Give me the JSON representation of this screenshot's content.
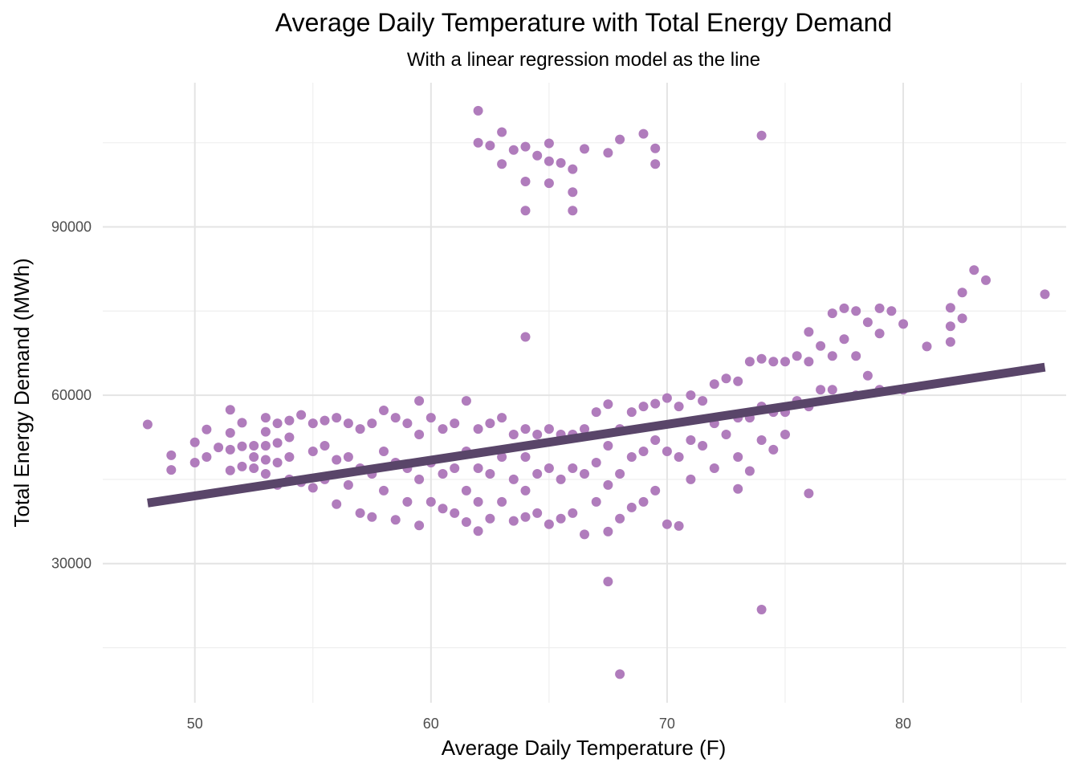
{
  "chart_data": {
    "type": "scatter",
    "title": "Average Daily Temperature with Total Energy Demand",
    "subtitle": "With a linear regression model as the line",
    "xlabel": "Average Daily Temperature (F)",
    "ylabel": "Total Energy Demand (MWh)",
    "xlim": [
      46.1,
      86.9
    ],
    "ylim": [
      5200,
      115700
    ],
    "x_ticks": [
      50,
      60,
      70,
      80
    ],
    "x_tick_labels": [
      "50",
      "60",
      "70",
      "80"
    ],
    "x_minor_ticks": [
      55,
      65,
      75,
      85
    ],
    "y_ticks": [
      30000,
      60000,
      90000
    ],
    "y_tick_labels": [
      "30000",
      "60000",
      "90000"
    ],
    "y_minor_ticks": [
      15000,
      45000,
      75000,
      105000
    ],
    "grid": true,
    "legend": "none",
    "colors": {
      "points": "#b07cbc",
      "line": "#594569",
      "grid_major": "#e4e4e4",
      "grid_minor": "#ededed"
    },
    "regression_line": {
      "x": [
        48,
        86
      ],
      "y": [
        40800,
        65000
      ]
    },
    "series": [
      {
        "x": [
          48,
          49,
          49,
          50,
          50,
          50.5,
          50.5,
          51,
          51.5,
          51.5,
          51.5,
          51.5,
          52,
          52,
          52,
          52.5,
          52.5,
          52.5,
          53,
          53,
          53,
          53,
          53,
          53.5,
          53.5,
          53.5,
          53.5,
          54,
          54,
          54,
          54,
          54.5,
          54.5,
          55,
          55,
          55,
          55.5,
          55.5,
          55.5,
          56,
          56,
          56,
          56.5,
          56.5,
          56.5,
          57,
          57,
          57,
          57.5,
          57.5,
          57.5,
          58,
          58,
          58,
          58.5,
          58.5,
          58.5,
          59,
          59,
          59,
          59.5,
          59.5,
          59.5,
          59.5,
          60,
          60,
          60,
          60.5,
          60.5,
          60.5,
          61,
          61,
          61,
          61.5,
          61.5,
          61.5,
          61.5,
          62,
          62,
          62,
          62,
          62.5,
          62.5,
          62.5,
          63,
          63,
          63,
          63.5,
          63.5,
          63.5,
          64,
          64,
          64,
          64,
          64.5,
          64.5,
          64.5,
          65,
          65,
          65,
          65.5,
          65.5,
          65.5,
          66,
          66,
          66,
          66.5,
          66.5,
          66.5,
          67,
          67,
          67,
          67.5,
          67.5,
          67.5,
          67.5,
          68,
          68,
          68,
          68.5,
          68.5,
          68.5,
          69,
          69,
          69,
          69.5,
          69.5,
          69.5,
          70,
          70,
          70,
          70.5,
          70.5,
          70.5,
          71,
          71,
          71,
          71.5,
          71.5,
          72,
          72,
          72,
          72.5,
          72.5,
          73,
          73,
          73,
          73,
          73.5,
          73.5,
          73.5,
          74,
          74,
          74,
          74.5,
          74.5,
          74.5,
          75,
          75,
          75,
          75.5,
          75.5,
          76,
          76,
          76,
          76,
          76.5,
          76.5,
          77,
          77,
          77,
          77.5,
          77.5,
          78,
          78,
          78,
          78.5,
          78.5,
          79,
          79,
          79,
          79.5,
          80,
          80,
          81,
          82,
          82,
          82,
          82.5,
          82.5,
          83,
          83.5,
          86,
          62,
          62,
          62.5,
          63,
          63,
          63.5,
          64,
          64,
          64,
          64.5,
          65,
          65,
          65,
          65.5,
          66,
          66,
          66,
          66.5,
          67.5,
          68,
          69,
          69.5,
          69.5,
          74,
          64,
          67.5,
          68,
          74
        ],
        "y": [
          54800,
          49300,
          46700,
          51600,
          48000,
          53900,
          49000,
          50700,
          57400,
          53300,
          50300,
          46600,
          55100,
          50900,
          47300,
          51000,
          49000,
          47000,
          56000,
          53500,
          51000,
          48500,
          46000,
          55000,
          51500,
          48000,
          44000,
          55500,
          52500,
          49000,
          45000,
          56500,
          44500,
          55000,
          50000,
          43500,
          55500,
          51000,
          45000,
          56000,
          48500,
          40600,
          55000,
          49000,
          44000,
          54000,
          47000,
          39000,
          55000,
          46000,
          38300,
          57300,
          50000,
          43000,
          56000,
          48000,
          37800,
          55000,
          47000,
          41000,
          59000,
          53000,
          45000,
          36800,
          56000,
          48000,
          41000,
          54000,
          46000,
          39800,
          55000,
          47000,
          39000,
          59000,
          50000,
          43000,
          37400,
          54000,
          47000,
          41000,
          35800,
          55000,
          46000,
          38000,
          56000,
          49000,
          41000,
          53000,
          45000,
          37600,
          54000,
          49000,
          43000,
          38300,
          53000,
          46000,
          39000,
          54000,
          47000,
          37000,
          53000,
          45000,
          38000,
          53000,
          47000,
          39000,
          54000,
          46000,
          35200,
          57000,
          48000,
          41000,
          58400,
          51000,
          44000,
          35700,
          54000,
          46000,
          38000,
          57000,
          49000,
          40000,
          58000,
          50000,
          41000,
          58500,
          52000,
          43000,
          59500,
          50000,
          37000,
          58000,
          49000,
          36700,
          60000,
          52000,
          45000,
          59000,
          51000,
          62000,
          55000,
          47000,
          63000,
          53000,
          62500,
          56000,
          49000,
          43300,
          66000,
          56000,
          46500,
          66500,
          58000,
          52000,
          66000,
          57000,
          50300,
          66000,
          57000,
          53000,
          67000,
          59000,
          71300,
          66000,
          58000,
          42500,
          68800,
          61000,
          74600,
          67000,
          61000,
          75500,
          70000,
          75000,
          67000,
          60000,
          73000,
          63500,
          75500,
          71000,
          61000,
          75000,
          72700,
          61000,
          68700,
          75600,
          72300,
          69500,
          78300,
          73700,
          82300,
          80500,
          78000,
          110700,
          105000,
          104500,
          106900,
          101200,
          103700,
          104300,
          98100,
          92900,
          102700,
          104900,
          101700,
          97800,
          101400,
          100300,
          96200,
          92900,
          103900,
          103200,
          105600,
          106600,
          104000,
          101200,
          106300,
          70400,
          26800,
          10300,
          21800
        ]
      }
    ]
  }
}
